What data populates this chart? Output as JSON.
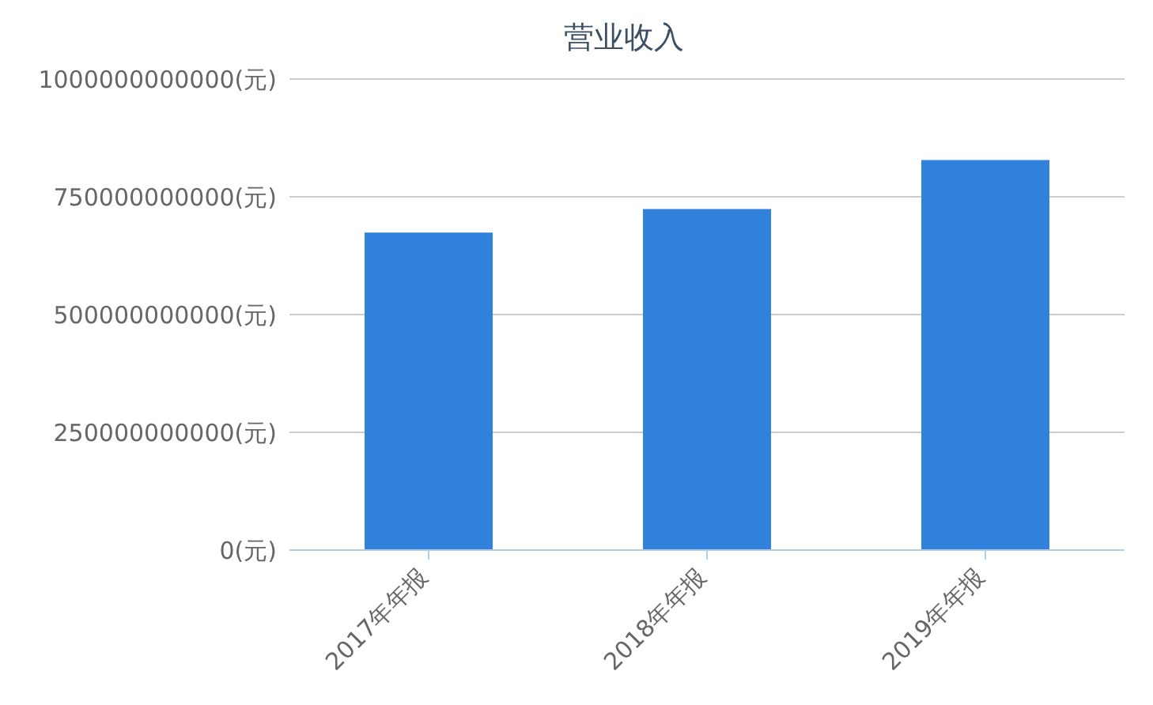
{
  "chart_data": {
    "type": "bar",
    "title": "营业收入",
    "categories": [
      "2017年年报",
      "2018年年报",
      "2019年年报"
    ],
    "values": [
      674000000000,
      724000000000,
      828000000000
    ],
    "color": "#3182dc",
    "ylim": [
      0,
      1000000000000
    ],
    "yticks": [
      {
        "value": 0,
        "label": "0(元)"
      },
      {
        "value": 250000000000,
        "label": "250000000000(元)"
      },
      {
        "value": 500000000000,
        "label": "500000000000(元)"
      },
      {
        "value": 750000000000,
        "label": "750000000000(元)"
      },
      {
        "value": 1000000000000,
        "label": "1000000000000(元)"
      }
    ],
    "grid": "y"
  }
}
